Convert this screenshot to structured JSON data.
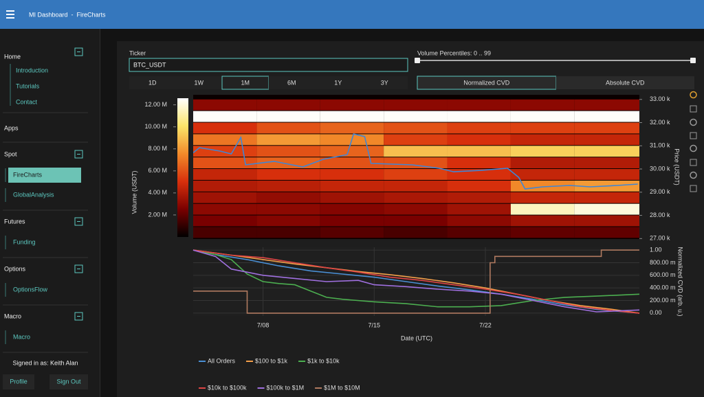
{
  "header": {
    "title": "MI Dashboard  -  FireCharts"
  },
  "sidebar": {
    "home": {
      "title": "Home",
      "links": [
        {
          "label": "Introduction"
        },
        {
          "label": "Tutorials"
        },
        {
          "label": "Contact"
        }
      ]
    },
    "apps_title": "Apps",
    "groups": [
      {
        "title": "Spot",
        "links": [
          {
            "label": "FireCharts",
            "active": true
          },
          {
            "label": "GlobalAnalysis"
          }
        ]
      },
      {
        "title": "Futures",
        "links": [
          {
            "label": "Funding"
          }
        ]
      },
      {
        "title": "Options",
        "links": [
          {
            "label": "OptionsFlow"
          }
        ]
      },
      {
        "title": "Macro",
        "links": [
          {
            "label": "Macro"
          }
        ]
      }
    ],
    "user": "Signed in as: Keith Alan",
    "buttons": [
      "Profile",
      "Sign Out"
    ]
  },
  "controls": {
    "ticker_label": "Ticker",
    "ticker_value": "BTC_USDT",
    "ranges": [
      {
        "label": "1D"
      },
      {
        "label": "1W"
      },
      {
        "label": "1M",
        "active": true
      },
      {
        "label": "6M"
      },
      {
        "label": "1Y"
      },
      {
        "label": "3Y"
      }
    ],
    "percentile_label": "Volume Percentiles: 0 .. 99",
    "cvd_modes": [
      {
        "label": "Normalized CVD",
        "active": true
      },
      {
        "label": "Absolute CVD"
      }
    ]
  },
  "chart_data": [
    {
      "type": "heatmap",
      "xlim": [
        3.6,
        31.7
      ],
      "ylim": [
        26980,
        33200
      ],
      "ylabel": "Price (USDT)",
      "yticks": [
        {
          "value": 27000,
          "label": "27.00 k"
        },
        {
          "value": 28000,
          "label": "28.00 k"
        },
        {
          "value": 29000,
          "label": "29.00 k"
        },
        {
          "value": 30000,
          "label": "30.00 k"
        },
        {
          "value": 31000,
          "label": "31.00 k"
        },
        {
          "value": 32000,
          "label": "32.00 k"
        },
        {
          "value": 33000,
          "label": "33.00 k"
        }
      ],
      "x_bins": [
        3.6,
        7.6,
        11.6,
        15.6,
        19.6,
        23.6,
        27.6,
        31.7
      ],
      "y_bins": [
        27000,
        27500,
        28000,
        28500,
        29000,
        29500,
        30000,
        30500,
        31000,
        31500,
        32000,
        32500,
        33000
      ],
      "z": [
        [
          1500000,
          1500000,
          1800000,
          1500000,
          1800000,
          2000000,
          2000000
        ],
        [
          2500000,
          2800000,
          2500000,
          2500000,
          3000000,
          3500000,
          3500000
        ],
        [
          3000000,
          3000000,
          2800000,
          3000000,
          3500000,
          11500000,
          12000000
        ],
        [
          3500000,
          3200000,
          3500000,
          3800000,
          4000000,
          4500000,
          4500000
        ],
        [
          4000000,
          4200000,
          4500000,
          4500000,
          5000000,
          7500000,
          8000000
        ],
        [
          4500000,
          5000000,
          5000000,
          5500000,
          5000000,
          4500000,
          4500000
        ],
        [
          6000000,
          6500000,
          6000000,
          6000000,
          5000000,
          4000000,
          4000000
        ],
        [
          5500000,
          6000000,
          6500000,
          9000000,
          9000000,
          9500000,
          9500000
        ],
        [
          7000000,
          8000000,
          7500000,
          5500000,
          5000000,
          4500000,
          4500000
        ],
        [
          5000000,
          6000000,
          6500000,
          6000000,
          5500000,
          5500000,
          5500000
        ],
        [
          12500000,
          12500000,
          12500000,
          12500000,
          12500000,
          12500000,
          12500000
        ],
        [
          3000000,
          3000000,
          3000000,
          3000000,
          3000000,
          3000000,
          3000000
        ]
      ],
      "colorscale": [
        "#000000",
        "#7a0000",
        "#d8300c",
        "#f28a2a",
        "#fbe56a",
        "#ffffff"
      ],
      "colorbar": {
        "title": "Volume (USDT)",
        "lim": [
          0,
          12600000
        ],
        "ticks": [
          {
            "value": 2000000,
            "label": "2.00 M"
          },
          {
            "value": 4000000,
            "label": "4.00 M"
          },
          {
            "value": 6000000,
            "label": "6.00 M"
          },
          {
            "value": 8000000,
            "label": "8.00 M"
          },
          {
            "value": 10000000,
            "label": "10.00 M"
          },
          {
            "value": 12000000,
            "label": "12.00 M"
          }
        ]
      },
      "line": {
        "color": "#3f86d6",
        "x": [
          3.6,
          4.0,
          5.3,
          6.0,
          6.6,
          6.9,
          8.7,
          10.5,
          11.8,
          13.3,
          13.7,
          14.4,
          14.8,
          17.4,
          19.1,
          20.0,
          21.7,
          23.4,
          24.1,
          24.5,
          25.6,
          27.3,
          28.6,
          30.3,
          31.6
        ],
        "values": [
          30700,
          30920,
          30770,
          30650,
          31360,
          30180,
          30330,
          30090,
          30420,
          30620,
          31510,
          31400,
          30240,
          30180,
          30030,
          29880,
          29940,
          30030,
          29640,
          29140,
          29230,
          29290,
          29230,
          29290,
          29350
        ]
      }
    },
    {
      "type": "line",
      "xlim": [
        3.6,
        31.7
      ],
      "ylim": [
        -0.045,
        1.045
      ],
      "grid": true,
      "xlabel": "Date (UTC)",
      "ylabel": "Normalized CVD (arb. u.)",
      "xticks": [
        {
          "value": 8,
          "label": "7/08"
        },
        {
          "value": 15,
          "label": "7/15"
        },
        {
          "value": 22,
          "label": "7/22"
        }
      ],
      "yticks": [
        {
          "value": 0,
          "label": "0.00"
        },
        {
          "value": 0.2,
          "label": "200.00 m"
        },
        {
          "value": 0.4,
          "label": "400.00 m"
        },
        {
          "value": 0.6,
          "label": "600.00 m"
        },
        {
          "value": 0.8,
          "label": "800.00 m"
        },
        {
          "value": 1,
          "label": "1.00"
        }
      ],
      "legend": "bottom",
      "series": [
        {
          "name": "All Orders",
          "color": "#4a8fd4",
          "x": [
            3.6,
            5,
            7,
            9,
            11,
            13,
            15,
            17,
            19,
            21,
            23,
            25,
            27,
            29,
            31.7
          ],
          "values": [
            1.0,
            0.93,
            0.85,
            0.75,
            0.67,
            0.62,
            0.57,
            0.5,
            0.43,
            0.37,
            0.3,
            0.22,
            0.13,
            0.06,
            0.0
          ]
        },
        {
          "name": "$100 to $1k",
          "color": "#f5a04a",
          "x": [
            3.6,
            6,
            8,
            10,
            12,
            14,
            16,
            18,
            20,
            22,
            24,
            26,
            28,
            30,
            31.7
          ],
          "values": [
            1.0,
            0.92,
            0.85,
            0.78,
            0.72,
            0.66,
            0.61,
            0.55,
            0.48,
            0.4,
            0.3,
            0.2,
            0.12,
            0.06,
            0.0
          ]
        },
        {
          "name": "$1k to $10k",
          "color": "#4caf50",
          "x": [
            3.6,
            5,
            6,
            7,
            8,
            9,
            10,
            11,
            12,
            13,
            15,
            17,
            19,
            21,
            23,
            25,
            27,
            29,
            31.7
          ],
          "values": [
            1.0,
            0.93,
            0.85,
            0.62,
            0.5,
            0.47,
            0.45,
            0.35,
            0.25,
            0.22,
            0.18,
            0.15,
            0.1,
            0.1,
            0.12,
            0.2,
            0.25,
            0.27,
            0.3
          ]
        },
        {
          "name": "$10k to $100k",
          "color": "#e04545",
          "x": [
            3.6,
            6,
            8,
            10,
            12,
            14,
            16,
            18,
            20,
            22,
            24,
            26,
            28,
            30,
            31.7
          ],
          "values": [
            1.0,
            0.92,
            0.88,
            0.8,
            0.72,
            0.65,
            0.57,
            0.52,
            0.45,
            0.38,
            0.3,
            0.2,
            0.1,
            0.04,
            0.0
          ]
        },
        {
          "name": "$100k to $1M",
          "color": "#a070e0",
          "x": [
            3.6,
            5,
            6,
            8,
            10,
            12,
            14,
            15,
            17,
            19,
            21,
            23,
            25,
            27,
            29,
            31.7
          ],
          "values": [
            1.0,
            0.9,
            0.7,
            0.6,
            0.55,
            0.5,
            0.52,
            0.45,
            0.42,
            0.38,
            0.35,
            0.3,
            0.2,
            0.1,
            0.02,
            0.05
          ]
        },
        {
          "name": "$1M to $10M",
          "color": "#b07a60",
          "x": [
            3.6,
            7.0,
            7.0,
            22.3,
            22.3,
            22.6,
            22.6,
            29.3,
            29.3,
            31.7
          ],
          "values": [
            0.35,
            0.35,
            0,
            0,
            0.8,
            0.8,
            0.9,
            0.9,
            1.0,
            1.0
          ]
        }
      ]
    }
  ]
}
